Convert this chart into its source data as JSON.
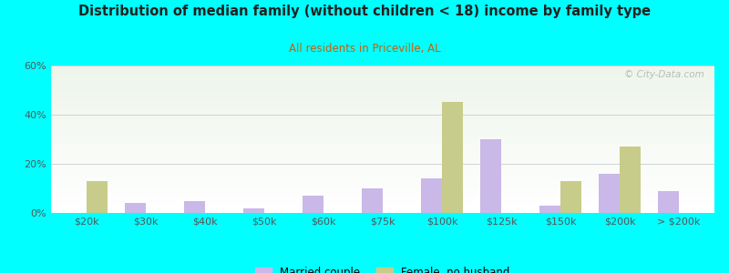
{
  "title": "Distribution of median family (without children < 18) income by family type",
  "subtitle": "All residents in Priceville, AL",
  "categories": [
    "$20k",
    "$30k",
    "$40k",
    "$50k",
    "$60k",
    "$75k",
    "$100k",
    "$125k",
    "$150k",
    "$200k",
    "> $200k"
  ],
  "married_couple": [
    0,
    4,
    5,
    2,
    7,
    10,
    14,
    30,
    3,
    16,
    9
  ],
  "female_no_husband": [
    13,
    0,
    0,
    0,
    0,
    0,
    45,
    0,
    13,
    27,
    0
  ],
  "married_color": "#c9b8e8",
  "female_color": "#c8cc8a",
  "title_color": "#222222",
  "subtitle_color": "#c8600a",
  "bg_color": "#00ffff",
  "ylim": [
    0,
    60
  ],
  "yticks": [
    0,
    20,
    40,
    60
  ],
  "ytick_labels": [
    "0%",
    "20%",
    "40%",
    "60%"
  ],
  "bar_width": 0.35,
  "watermark": "© City-Data.com",
  "legend_married": "Married couple",
  "legend_female": "Female, no husband"
}
